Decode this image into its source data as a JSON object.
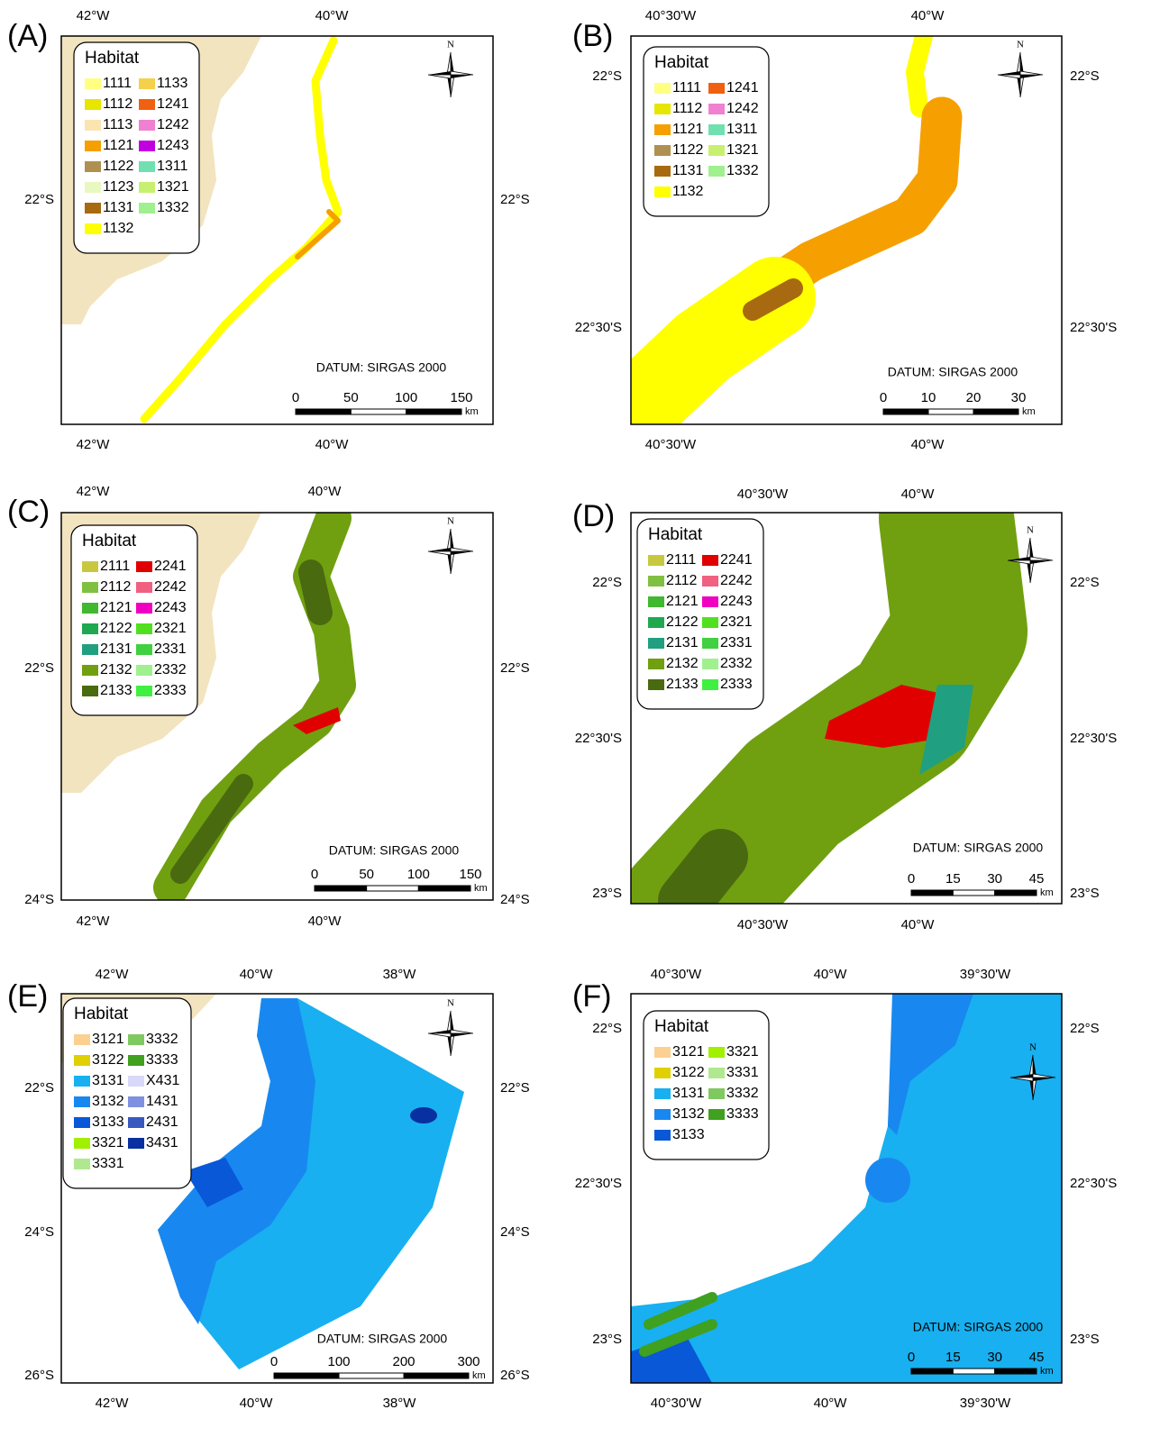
{
  "panels": [
    {
      "label": "(A)",
      "top_labels": [
        "42°W",
        "40°W"
      ],
      "bottom_labels": [
        "42°W",
        "40°W"
      ],
      "left_labels": [
        "22°S"
      ],
      "right_labels": [
        "22°S"
      ],
      "legend": {
        "title": "Habitat",
        "items": [
          {
            "code": "1111",
            "color": "#ffff80"
          },
          {
            "code": "1112",
            "color": "#e6e600"
          },
          {
            "code": "1113",
            "color": "#fce4b0"
          },
          {
            "code": "1121",
            "color": "#f5a000"
          },
          {
            "code": "1122",
            "color": "#b09050"
          },
          {
            "code": "1123",
            "color": "#e8f8c0"
          },
          {
            "code": "1131",
            "color": "#a86a10"
          },
          {
            "code": "1132",
            "color": "#ffff00"
          },
          {
            "code": "1133",
            "color": "#f5d04a"
          },
          {
            "code": "1241",
            "color": "#f06010"
          },
          {
            "code": "1242",
            "color": "#f080d0"
          },
          {
            "code": "1243",
            "color": "#c000e0"
          },
          {
            "code": "1311",
            "color": "#70e0b0"
          },
          {
            "code": "1321",
            "color": "#c8f070"
          },
          {
            "code": "1332",
            "color": "#a0f090"
          }
        ]
      },
      "datum": "DATUM: SIRGAS 2000",
      "scale": {
        "labels": [
          "0",
          "50",
          "100",
          "150"
        ],
        "unit": "km"
      },
      "north": "N"
    },
    {
      "label": "(B)",
      "top_labels": [
        "40°30'W",
        "40°W"
      ],
      "bottom_labels": [
        "40°30'W",
        "40°W"
      ],
      "left_labels": [
        "22°S",
        "22°30'S"
      ],
      "right_labels": [
        "22°S",
        "22°30'S"
      ],
      "legend": {
        "title": "Habitat",
        "items": [
          {
            "code": "1111",
            "color": "#ffff80"
          },
          {
            "code": "1112",
            "color": "#e6e600"
          },
          {
            "code": "1121",
            "color": "#f5a000"
          },
          {
            "code": "1122",
            "color": "#b09050"
          },
          {
            "code": "1131",
            "color": "#a86a10"
          },
          {
            "code": "1132",
            "color": "#ffff00"
          },
          {
            "code": "1241",
            "color": "#f06010"
          },
          {
            "code": "1242",
            "color": "#f080d0"
          },
          {
            "code": "1311",
            "color": "#70e0b0"
          },
          {
            "code": "1321",
            "color": "#c8f070"
          },
          {
            "code": "1332",
            "color": "#a0f090"
          }
        ]
      },
      "datum": "DATUM: SIRGAS 2000",
      "scale": {
        "labels": [
          "0",
          "10",
          "20",
          "30"
        ],
        "unit": "km"
      },
      "north": "N"
    },
    {
      "label": "(C)",
      "top_labels": [
        "42°W",
        "40°W"
      ],
      "bottom_labels": [
        "42°W",
        "40°W"
      ],
      "left_labels": [
        "22°S",
        "24°S"
      ],
      "right_labels": [
        "22°S",
        "24°S"
      ],
      "legend": {
        "title": "Habitat",
        "items": [
          {
            "code": "2111",
            "color": "#c8c840"
          },
          {
            "code": "2112",
            "color": "#80c040"
          },
          {
            "code": "2121",
            "color": "#40b830"
          },
          {
            "code": "2122",
            "color": "#20a850"
          },
          {
            "code": "2131",
            "color": "#20a080"
          },
          {
            "code": "2132",
            "color": "#70a010"
          },
          {
            "code": "2133",
            "color": "#4a6a10"
          },
          {
            "code": "2241",
            "color": "#e00000"
          },
          {
            "code": "2242",
            "color": "#f06080"
          },
          {
            "code": "2243",
            "color": "#f000c0"
          },
          {
            "code": "2321",
            "color": "#50e020"
          },
          {
            "code": "2331",
            "color": "#40d040"
          },
          {
            "code": "2332",
            "color": "#a0f090"
          },
          {
            "code": "2333",
            "color": "#40f040"
          }
        ]
      },
      "datum": "DATUM: SIRGAS 2000",
      "scale": {
        "labels": [
          "0",
          "50",
          "100",
          "150"
        ],
        "unit": "km"
      },
      "north": "N"
    },
    {
      "label": "(D)",
      "top_labels": [
        "40°30'W",
        "40°W"
      ],
      "bottom_labels": [
        "40°30'W",
        "40°W"
      ],
      "left_labels": [
        "22°S",
        "22°30'S",
        "23°S"
      ],
      "right_labels": [
        "22°S",
        "22°30'S",
        "23°S"
      ],
      "legend": {
        "title": "Habitat",
        "items": [
          {
            "code": "2111",
            "color": "#c8c840"
          },
          {
            "code": "2112",
            "color": "#80c040"
          },
          {
            "code": "2121",
            "color": "#40b830"
          },
          {
            "code": "2122",
            "color": "#20a850"
          },
          {
            "code": "2131",
            "color": "#20a080"
          },
          {
            "code": "2132",
            "color": "#70a010"
          },
          {
            "code": "2133",
            "color": "#4a6a10"
          },
          {
            "code": "2241",
            "color": "#e00000"
          },
          {
            "code": "2242",
            "color": "#f06080"
          },
          {
            "code": "2243",
            "color": "#f000c0"
          },
          {
            "code": "2321",
            "color": "#50e020"
          },
          {
            "code": "2331",
            "color": "#40d040"
          },
          {
            "code": "2332",
            "color": "#a0f090"
          },
          {
            "code": "2333",
            "color": "#40f040"
          }
        ]
      },
      "datum": "DATUM: SIRGAS 2000",
      "scale": {
        "labels": [
          "0",
          "15",
          "30",
          "45"
        ],
        "unit": "km"
      },
      "north": "N"
    },
    {
      "label": "(E)",
      "top_labels": [
        "42°W",
        "40°W",
        "38°W"
      ],
      "bottom_labels": [
        "42°W",
        "40°W",
        "38°W"
      ],
      "left_labels": [
        "22°S",
        "24°S",
        "26°S"
      ],
      "right_labels": [
        "22°S",
        "24°S",
        "26°S"
      ],
      "legend": {
        "title": "Habitat",
        "items": [
          {
            "code": "3121",
            "color": "#fcd090"
          },
          {
            "code": "3122",
            "color": "#e0d000"
          },
          {
            "code": "3131",
            "color": "#18b0f0"
          },
          {
            "code": "3132",
            "color": "#1888f0"
          },
          {
            "code": "3133",
            "color": "#0858d8"
          },
          {
            "code": "3321",
            "color": "#a0f000"
          },
          {
            "code": "3331",
            "color": "#b0e890"
          },
          {
            "code": "3332",
            "color": "#80c860"
          },
          {
            "code": "3333",
            "color": "#40a020"
          },
          {
            "code": "X431",
            "color": "#d8d8f8"
          },
          {
            "code": "1431",
            "color": "#8090e0"
          },
          {
            "code": "2431",
            "color": "#3858c0"
          },
          {
            "code": "3431",
            "color": "#0830a0"
          }
        ]
      },
      "datum": "DATUM: SIRGAS 2000",
      "scale": {
        "labels": [
          "0",
          "100",
          "200",
          "300"
        ],
        "unit": "km"
      },
      "north": "N"
    },
    {
      "label": "(F)",
      "top_labels": [
        "40°30'W",
        "40°W",
        "39°30'W"
      ],
      "bottom_labels": [
        "40°30'W",
        "40°W",
        "39°30'W"
      ],
      "left_labels": [
        "22°S",
        "22°30'S",
        "23°S"
      ],
      "right_labels": [
        "22°S",
        "22°30'S",
        "23°S"
      ],
      "legend": {
        "title": "Habitat",
        "items": [
          {
            "code": "3121",
            "color": "#fcd090"
          },
          {
            "code": "3122",
            "color": "#e0d000"
          },
          {
            "code": "3131",
            "color": "#18b0f0"
          },
          {
            "code": "3132",
            "color": "#1888f0"
          },
          {
            "code": "3133",
            "color": "#0858d8"
          },
          {
            "code": "3321",
            "color": "#a0f000"
          },
          {
            "code": "3331",
            "color": "#b0e890"
          },
          {
            "code": "3332",
            "color": "#80c860"
          },
          {
            "code": "3333",
            "color": "#40a020"
          }
        ]
      },
      "datum": "DATUM: SIRGAS 2000",
      "scale": {
        "labels": [
          "0",
          "15",
          "30",
          "45"
        ],
        "unit": "km"
      },
      "north": "N"
    }
  ]
}
